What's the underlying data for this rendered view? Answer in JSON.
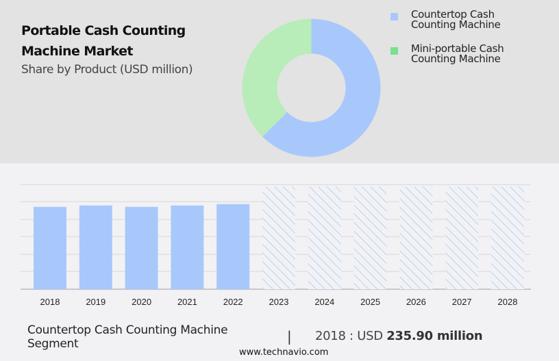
{
  "header": {
    "title_line1": "Portable Cash Counting",
    "title_line2": "Machine Market",
    "subtitle": "Share by Product (USD million)"
  },
  "colors": {
    "top_band": "#e3e3e3",
    "background": "#f2f2f4",
    "countertop": "#a8c8fc",
    "mini_portable": "#b8ecb8",
    "mini_portable_legend": "#78e08e",
    "gridline": "#d6d6d8",
    "axis": "#b0b0b0",
    "hatch": "#a8c8fc"
  },
  "legend": [
    {
      "label_line1": "Countertop Cash",
      "label_line2": "Counting Machine",
      "color": "#a8c8fc"
    },
    {
      "label_line1": "Mini-portable Cash",
      "label_line2": "Counting Machine",
      "color": "#78e08e"
    }
  ],
  "footer": {
    "segment_line1": "Countertop Cash Counting Machine",
    "segment_line2": "Segment",
    "separator": "|",
    "value_prefix": "2018 : USD ",
    "value_bold": "235.90 million",
    "url": "www.technavio.com"
  },
  "chart_data": [
    {
      "type": "pie",
      "title": "Share by Product (USD million)",
      "donut": true,
      "labels": [
        "Countertop Cash Counting Machine",
        "Mini-portable Cash Counting Machine"
      ],
      "values": [
        62.5,
        37.5
      ],
      "unit": "% (estimated from slice angles)",
      "legend_position": "right"
    },
    {
      "type": "bar",
      "title": "Countertop Cash Counting Machine Segment",
      "categories": [
        "2018",
        "2019",
        "2020",
        "2021",
        "2022",
        "2023",
        "2024",
        "2025",
        "2026",
        "2027",
        "2028"
      ],
      "series": [
        {
          "name": "Historic",
          "values": [
            235.9,
            239.8,
            235.9,
            239.8,
            243.7,
            null,
            null,
            null,
            null,
            null,
            null
          ]
        },
        {
          "name": "Forecast (hatched, values not shown)",
          "values": [
            null,
            null,
            null,
            null,
            null,
            290,
            290,
            290,
            290,
            290,
            290
          ]
        }
      ],
      "annotation": "2018 : USD 235.90 million",
      "xlabel": "",
      "ylabel": "USD million",
      "y_tick_labels_visible": false,
      "grid": true,
      "ylim": [
        0,
        296
      ]
    }
  ]
}
